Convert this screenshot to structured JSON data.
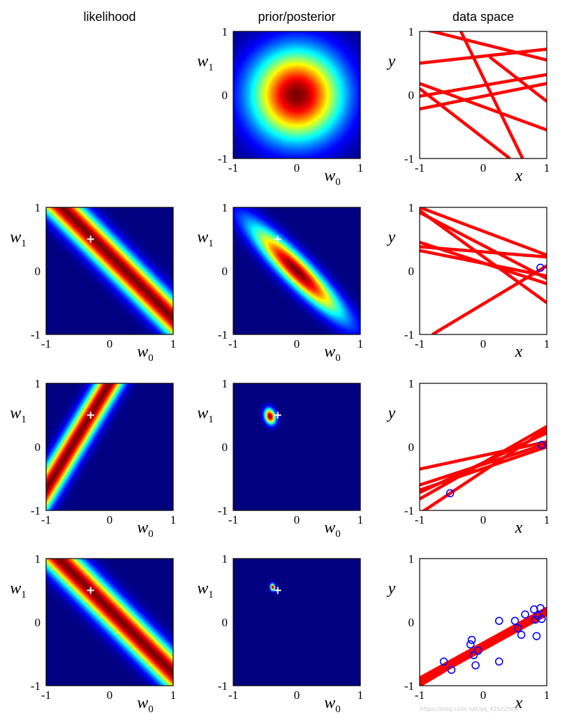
{
  "column_titles": {
    "likelihood": "likelihood",
    "posterior": "prior/posterior",
    "data": "data space"
  },
  "watermark": "https://blog.csdn.net/qq_41522508",
  "colormap": "jet",
  "line_color": "#ff0000",
  "marker_color": "#0000ff",
  "cross_color": "#ffffff",
  "axes": {
    "tick_labels": [
      "-1",
      "0",
      "1"
    ],
    "param_x": {
      "base": "w",
      "sub": "0"
    },
    "param_y": {
      "base": "w",
      "sub": "1"
    },
    "data_x": "x",
    "data_y": "y",
    "xlim": [
      -1,
      1
    ],
    "ylim": [
      -1,
      1
    ]
  },
  "chart_data": [
    {
      "type": "heatmap",
      "row": 0,
      "column": "prior/posterior",
      "gaussian": {
        "mean": [
          0,
          0
        ],
        "cov": [
          [
            0.25,
            0
          ],
          [
            0,
            0.25
          ]
        ]
      }
    },
    {
      "type": "line",
      "row": 0,
      "column": "data space",
      "lines": [
        {
          "x": [
            -1,
            1
          ],
          "y": [
            1.05,
            0.55
          ]
        },
        {
          "x": [
            -1,
            1
          ],
          "y": [
            0.5,
            0.72
          ]
        },
        {
          "x": [
            -1,
            1
          ],
          "y": [
            0.18,
            -0.55
          ]
        },
        {
          "x": [
            -1,
            1
          ],
          "y": [
            -0.02,
            0.32
          ]
        },
        {
          "x": [
            -1,
            1
          ],
          "y": [
            -0.22,
            0.18
          ]
        },
        {
          "x": [
            -0.4,
            0.62
          ],
          "y": [
            1.1,
            -1.0
          ]
        },
        {
          "x": [
            -1,
            0.42
          ],
          "y": [
            0.1,
            -1.0
          ]
        },
        {
          "x": [
            0.1,
            1
          ],
          "y": [
            0.6,
            -0.1
          ]
        }
      ]
    },
    {
      "type": "heatmap",
      "row": 1,
      "column": "likelihood",
      "band": {
        "a": 1.0,
        "b": 1.0,
        "c": 0.25,
        "sigma": 0.16
      },
      "true_param": [
        -0.3,
        0.5
      ]
    },
    {
      "type": "heatmap",
      "row": 1,
      "column": "prior/posterior",
      "gaussian": {
        "mean": [
          0.0,
          0.0
        ],
        "cov": [
          [
            0.24,
            -0.22
          ],
          [
            -0.22,
            0.24
          ]
        ]
      },
      "true_param": [
        -0.3,
        0.5
      ]
    },
    {
      "type": "line",
      "row": 1,
      "column": "data space",
      "points": [
        {
          "x": 0.9,
          "y": 0.05
        }
      ],
      "lines": [
        {
          "x": [
            -1,
            1
          ],
          "y": [
            1.0,
            0.25
          ]
        },
        {
          "x": [
            -1,
            1
          ],
          "y": [
            0.92,
            -0.12
          ]
        },
        {
          "x": [
            -1,
            1
          ],
          "y": [
            0.45,
            -0.2
          ]
        },
        {
          "x": [
            -1,
            1
          ],
          "y": [
            0.38,
            0.22
          ]
        },
        {
          "x": [
            -1,
            1
          ],
          "y": [
            0.32,
            -0.08
          ]
        },
        {
          "x": [
            -0.8,
            1
          ],
          "y": [
            -1.0,
            0.08
          ]
        },
        {
          "x": [
            -1,
            1
          ],
          "y": [
            0.95,
            -0.5
          ]
        }
      ]
    },
    {
      "type": "heatmap",
      "row": 2,
      "column": "likelihood",
      "band": {
        "a": 1.0,
        "b": -0.6,
        "c": -0.6,
        "sigma": 0.13
      },
      "true_param": [
        -0.3,
        0.5
      ]
    },
    {
      "type": "heatmap",
      "row": 2,
      "column": "prior/posterior",
      "gaussian": {
        "mean": [
          -0.42,
          0.48
        ],
        "cov": [
          [
            0.0035,
            -0.001
          ],
          [
            -0.001,
            0.007
          ]
        ]
      },
      "true_param": [
        -0.3,
        0.5
      ]
    },
    {
      "type": "line",
      "row": 2,
      "column": "data space",
      "points": [
        {
          "x": 0.92,
          "y": 0.03
        },
        {
          "x": -0.52,
          "y": -0.73
        }
      ],
      "lines": [
        {
          "x": [
            -1,
            1
          ],
          "y": [
            -0.82,
            0.32
          ]
        },
        {
          "x": [
            -1,
            1
          ],
          "y": [
            -0.72,
            0.22
          ]
        },
        {
          "x": [
            -1,
            1
          ],
          "y": [
            -0.6,
            0.05
          ]
        },
        {
          "x": [
            -1,
            1
          ],
          "y": [
            -0.35,
            0.08
          ]
        },
        {
          "x": [
            -1,
            1
          ],
          "y": [
            -0.68,
            0.0
          ]
        },
        {
          "x": [
            -1,
            1
          ],
          "y": [
            -1.05,
            0.28
          ]
        }
      ]
    },
    {
      "type": "heatmap",
      "row": 3,
      "column": "likelihood",
      "band": {
        "a": 1.0,
        "b": 1.0,
        "c": 0.2,
        "sigma": 0.16
      },
      "true_param": [
        -0.3,
        0.5
      ]
    },
    {
      "type": "heatmap",
      "row": 3,
      "column": "prior/posterior",
      "gaussian": {
        "mean": [
          -0.38,
          0.55
        ],
        "cov": [
          [
            0.0006,
            -0.0001
          ],
          [
            -0.0001,
            0.0014
          ]
        ]
      },
      "true_param": [
        -0.3,
        0.5
      ]
    },
    {
      "type": "line",
      "row": 3,
      "column": "data space",
      "points": [
        {
          "x": -0.62,
          "y": -0.62
        },
        {
          "x": -0.5,
          "y": -0.75
        },
        {
          "x": -0.18,
          "y": -0.28
        },
        {
          "x": -0.2,
          "y": -0.35
        },
        {
          "x": -0.15,
          "y": -0.52
        },
        {
          "x": -0.12,
          "y": -0.68
        },
        {
          "x": -0.08,
          "y": -0.45
        },
        {
          "x": 0.25,
          "y": 0.02
        },
        {
          "x": 0.25,
          "y": -0.62
        },
        {
          "x": 0.5,
          "y": 0.02
        },
        {
          "x": 0.55,
          "y": -0.1
        },
        {
          "x": 0.6,
          "y": -0.2
        },
        {
          "x": 0.66,
          "y": 0.12
        },
        {
          "x": 0.8,
          "y": 0.2
        },
        {
          "x": 0.86,
          "y": 0.1
        },
        {
          "x": 0.9,
          "y": 0.22
        },
        {
          "x": 0.92,
          "y": 0.05
        },
        {
          "x": 0.84,
          "y": -0.22
        },
        {
          "x": 0.82,
          "y": 0.04
        }
      ],
      "lines": [
        {
          "x": [
            -1,
            1
          ],
          "y": [
            -0.95,
            0.2
          ]
        },
        {
          "x": [
            -1,
            1
          ],
          "y": [
            -0.88,
            0.22
          ]
        },
        {
          "x": [
            -1,
            1
          ],
          "y": [
            -0.98,
            0.12
          ]
        },
        {
          "x": [
            -1,
            1
          ],
          "y": [
            -0.9,
            0.16
          ]
        },
        {
          "x": [
            -1,
            1
          ],
          "y": [
            -1.0,
            0.18
          ]
        },
        {
          "x": [
            -1,
            1
          ],
          "y": [
            -0.93,
            0.14
          ]
        }
      ]
    }
  ]
}
